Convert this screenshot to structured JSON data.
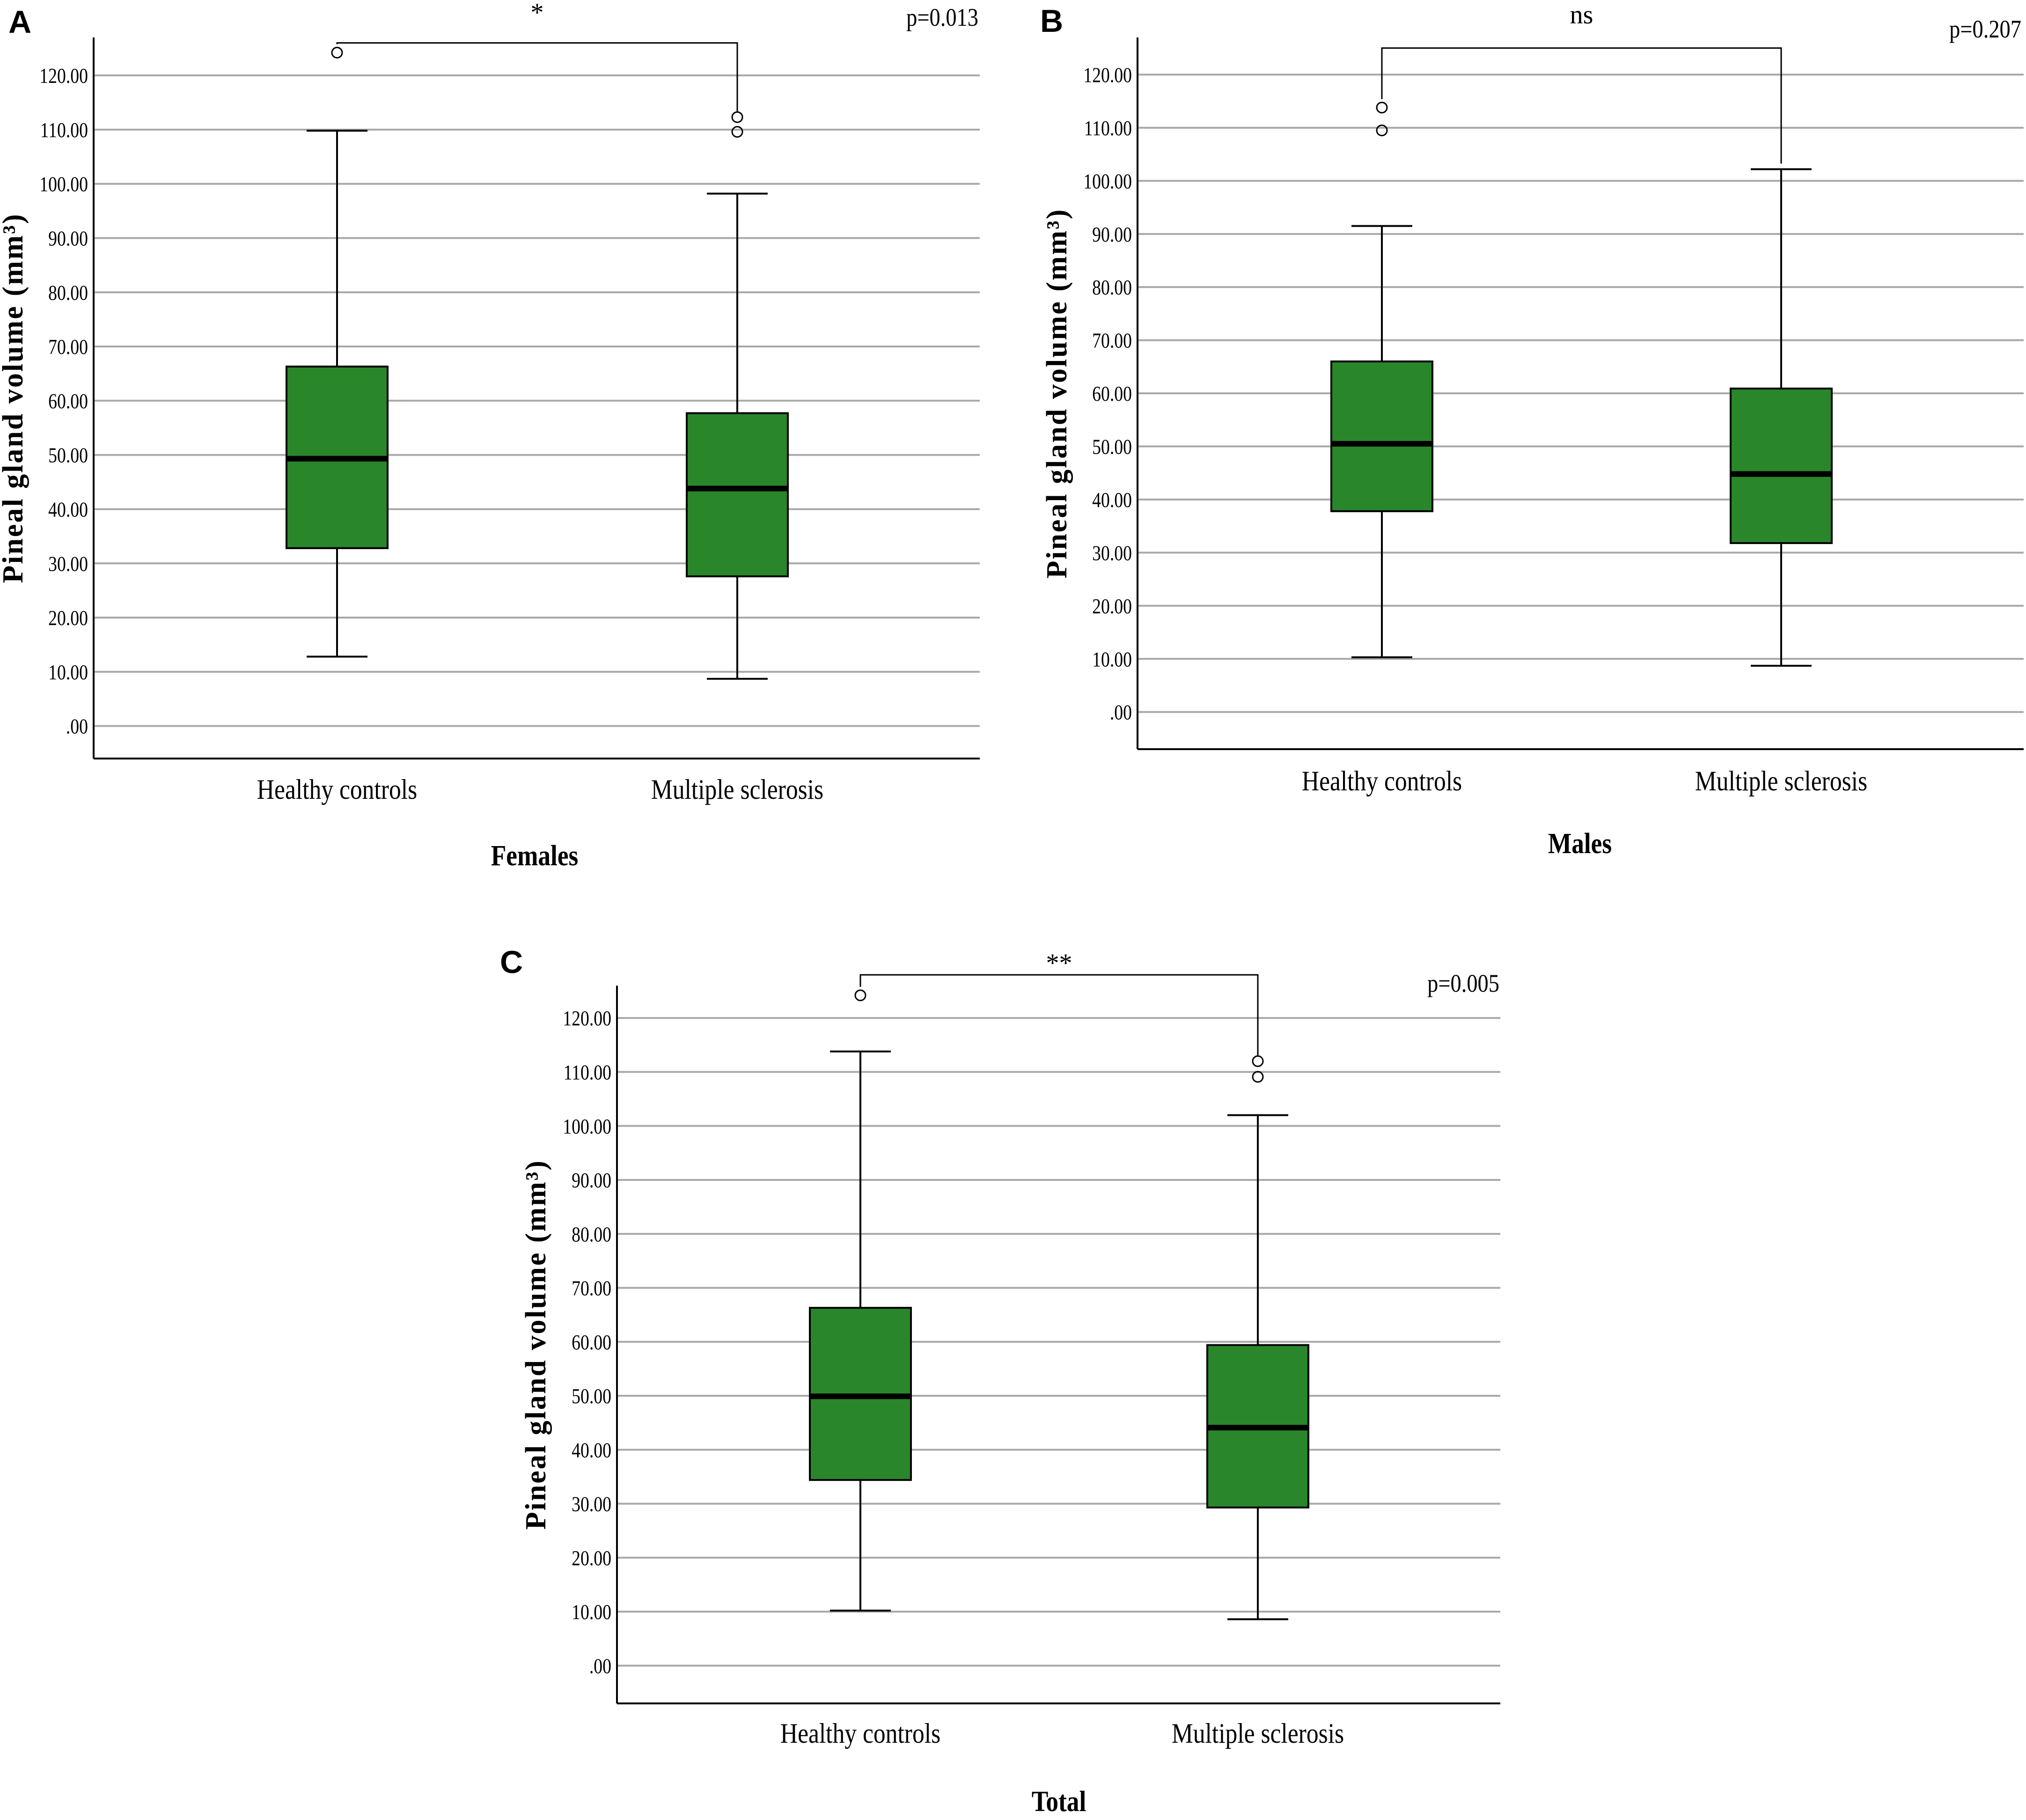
{
  "figure": {
    "panels": [
      "A",
      "B",
      "C"
    ]
  },
  "colors": {
    "box_fill": "#2a862a",
    "grid": "#a8a8a8",
    "axis": "#000000",
    "text": "#000000"
  },
  "chart_data": [
    {
      "type": "boxplot",
      "panel_label": "A",
      "title": "Females",
      "xlabel": "Females",
      "ylabel": "Pineal gland volume (mm³)",
      "ylim": [
        -6,
        127
      ],
      "yticks": [
        0,
        10,
        20,
        30,
        40,
        50,
        60,
        70,
        80,
        90,
        100,
        110,
        120
      ],
      "ytick_labels": [
        ".00",
        "10.00",
        "20.00",
        "30.00",
        "40.00",
        "50.00",
        "60.00",
        "70.00",
        "80.00",
        "90.00",
        "100.00",
        "110.00",
        "120.00"
      ],
      "grid": true,
      "categories": [
        "Healthy controls",
        "Multiple sclerosis"
      ],
      "boxes": [
        {
          "min": 12.8,
          "q1": 32.8,
          "median": 49.3,
          "q3": 66.3,
          "max": 109.8,
          "outliers": [
            124.2
          ]
        },
        {
          "min": 8.7,
          "q1": 27.6,
          "median": 43.8,
          "q3": 57.7,
          "max": 98.2,
          "outliers": [
            109.6,
            112.3
          ]
        }
      ],
      "significance": {
        "label": "*",
        "p_value": "p=0.013",
        "bracket_y": 126
      }
    },
    {
      "type": "boxplot",
      "panel_label": "B",
      "title": "Males",
      "xlabel": "Males",
      "ylabel": "Pineal gland volume (mm³)",
      "ylim": [
        -7,
        127
      ],
      "yticks": [
        0,
        10,
        20,
        30,
        40,
        50,
        60,
        70,
        80,
        90,
        100,
        110,
        120
      ],
      "ytick_labels": [
        ".00",
        "10.00",
        "20.00",
        "30.00",
        "40.00",
        "50.00",
        "60.00",
        "70.00",
        "80.00",
        "90.00",
        "100.00",
        "110.00",
        "120.00"
      ],
      "grid": true,
      "categories": [
        "Healthy controls",
        "Multiple sclerosis"
      ],
      "boxes": [
        {
          "min": 10.3,
          "q1": 37.8,
          "median": 50.5,
          "q3": 66.0,
          "max": 91.5,
          "outliers": [
            109.5,
            113.8
          ]
        },
        {
          "min": 8.7,
          "q1": 31.8,
          "median": 44.8,
          "q3": 60.9,
          "max": 102.2,
          "outliers": []
        }
      ],
      "significance": {
        "label": "ns",
        "p_value": "p=0.207",
        "bracket_y": 125
      }
    },
    {
      "type": "boxplot",
      "panel_label": "C",
      "title": "Total",
      "xlabel": "Total",
      "ylabel": "Pineal gland volume (mm³)",
      "ylim": [
        -7,
        126
      ],
      "yticks": [
        0,
        10,
        20,
        30,
        40,
        50,
        60,
        70,
        80,
        90,
        100,
        110,
        120
      ],
      "ytick_labels": [
        ".00",
        "10.00",
        "20.00",
        "30.00",
        "40.00",
        "50.00",
        "60.00",
        "70.00",
        "80.00",
        "90.00",
        "100.00",
        "110.00",
        "120.00"
      ],
      "grid": true,
      "categories": [
        "Healthy controls",
        "Multiple sclerosis"
      ],
      "boxes": [
        {
          "min": 10.2,
          "q1": 34.4,
          "median": 49.9,
          "q3": 66.3,
          "max": 113.8,
          "outliers": [
            124.2
          ]
        },
        {
          "min": 8.6,
          "q1": 29.3,
          "median": 44.1,
          "q3": 59.4,
          "max": 102.0,
          "outliers": [
            109.1,
            112.0
          ]
        }
      ],
      "significance": {
        "label": "**",
        "p_value": "p=0.005",
        "bracket_y": 128
      }
    }
  ]
}
